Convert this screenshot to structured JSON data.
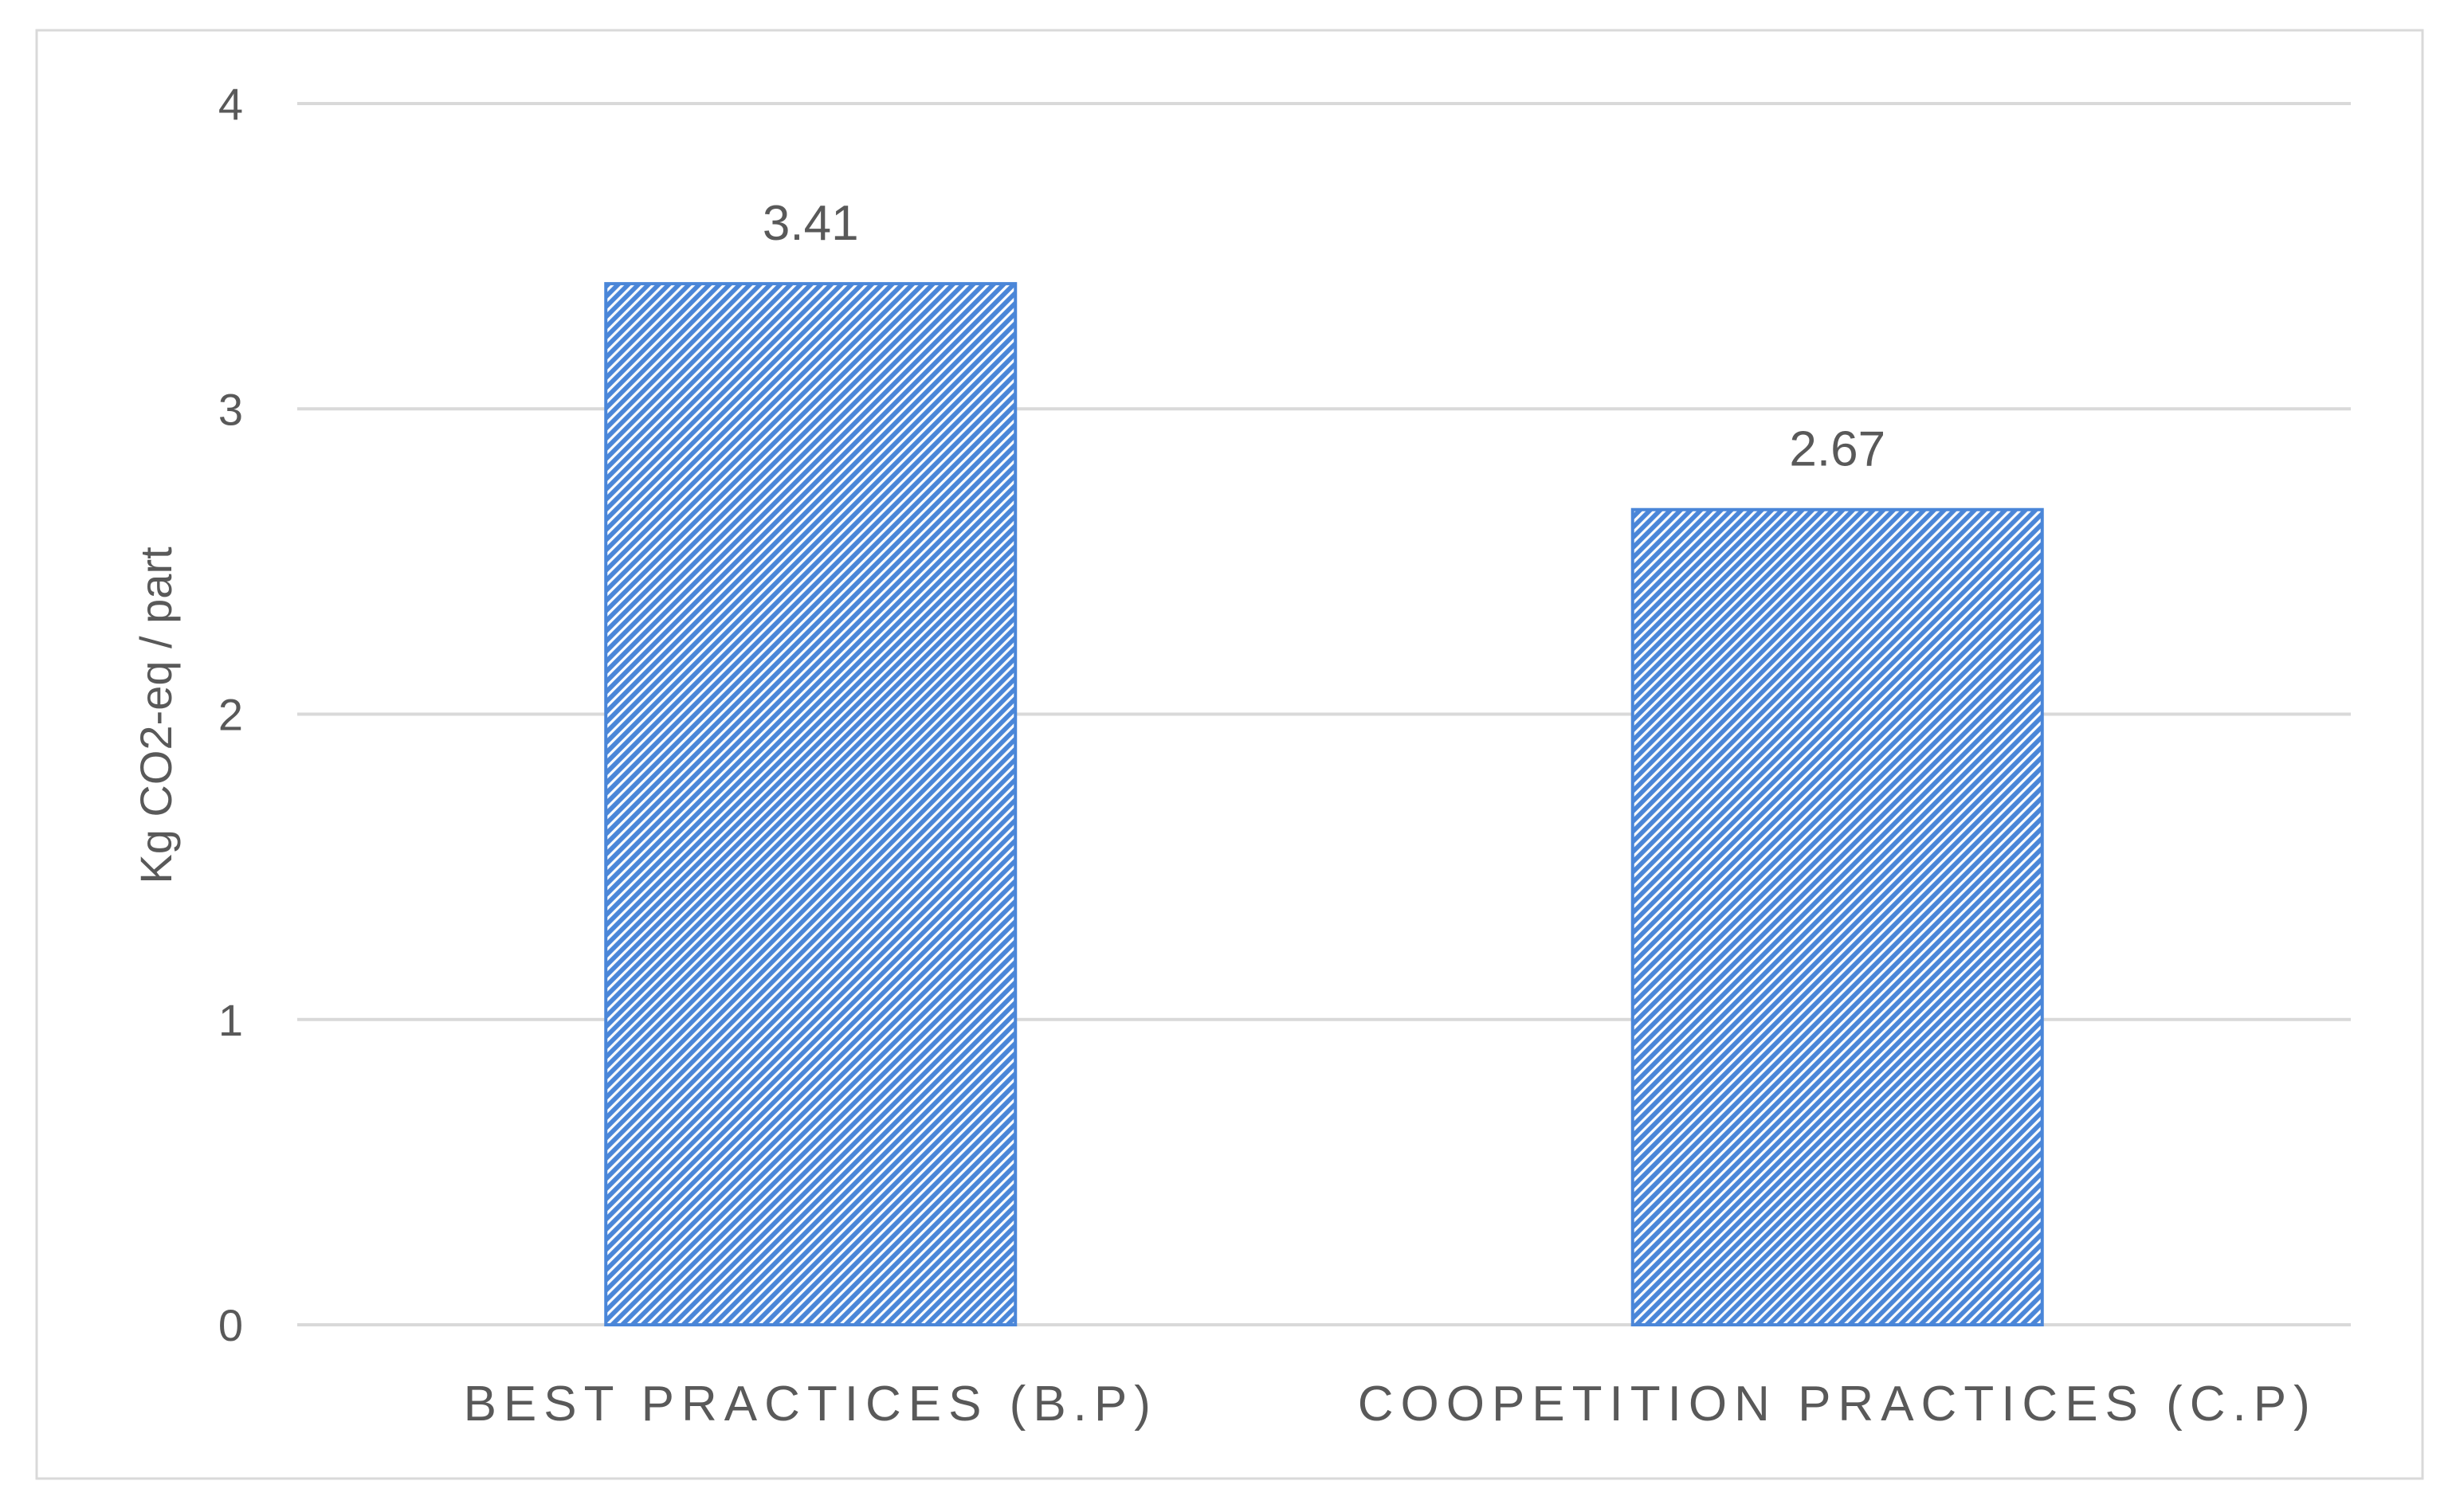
{
  "chart_data": {
    "type": "bar",
    "title": "",
    "xlabel": "",
    "ylabel": "Kg CO2-eq / part",
    "categories": [
      "BEST PRACTICES (B.P)",
      "COOPETITION PRACTICES (C.P)"
    ],
    "values": [
      3.41,
      2.67
    ],
    "data_labels": [
      "3.41",
      "2.67"
    ],
    "ylim": [
      0,
      4
    ],
    "yticks": [
      "0",
      "1",
      "2",
      "3",
      "4"
    ],
    "grid": true,
    "legend": "none",
    "colors": {
      "bar": "#4a86d8",
      "bar_stripe": "#ffffff",
      "grid": "#d9d9d9",
      "axis_text": "#595959",
      "frame": "#d9d9d9"
    }
  }
}
